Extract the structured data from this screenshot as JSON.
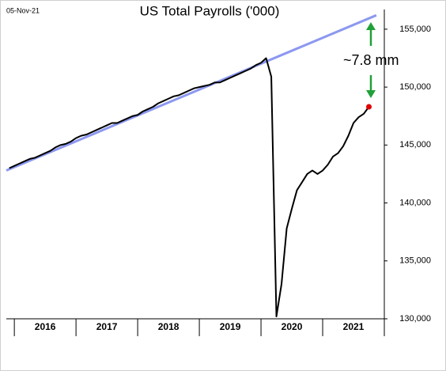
{
  "chart_data": {
    "type": "line",
    "title": "US Total Payrolls ('000)",
    "date_label": "05-Nov-21",
    "annotation": "~7.8 mm",
    "annotation_color": "#21a038",
    "xlim": [
      2015.87,
      2022.0
    ],
    "xticks": [
      {
        "value": 2016.5,
        "label": "2016"
      },
      {
        "value": 2017.5,
        "label": "2017"
      },
      {
        "value": 2018.5,
        "label": "2018"
      },
      {
        "value": 2019.5,
        "label": "2019"
      },
      {
        "value": 2020.5,
        "label": "2020"
      },
      {
        "value": 2021.5,
        "label": "2021"
      }
    ],
    "xticks_minor": [
      2016,
      2017,
      2018,
      2019,
      2020,
      2021,
      2022
    ],
    "ylim": [
      130000,
      156700
    ],
    "yticks": [
      {
        "value": 130000,
        "label": "130,000"
      },
      {
        "value": 135000,
        "label": "135,000"
      },
      {
        "value": 140000,
        "label": "140,000"
      },
      {
        "value": 145000,
        "label": "145,000"
      },
      {
        "value": 150000,
        "label": "150,000"
      },
      {
        "value": 155000,
        "label": "155,000"
      }
    ],
    "last_point_color": "#e00000",
    "series": [
      {
        "color": "#8c98f0",
        "width": 3,
        "x": [
          2015.87,
          2021.87
        ],
        "values": [
          142800,
          156200
        ]
      },
      {
        "color": "#000000",
        "width": 2,
        "x": [
          2015.917,
          2016.0,
          2016.083,
          2016.167,
          2016.25,
          2016.333,
          2016.417,
          2016.5,
          2016.583,
          2016.667,
          2016.75,
          2016.833,
          2016.917,
          2017.0,
          2017.083,
          2017.167,
          2017.25,
          2017.333,
          2017.417,
          2017.5,
          2017.583,
          2017.667,
          2017.75,
          2017.833,
          2017.917,
          2018.0,
          2018.083,
          2018.167,
          2018.25,
          2018.333,
          2018.417,
          2018.5,
          2018.583,
          2018.667,
          2018.75,
          2018.833,
          2018.917,
          2019.0,
          2019.083,
          2019.167,
          2019.25,
          2019.333,
          2019.417,
          2019.5,
          2019.583,
          2019.667,
          2019.75,
          2019.833,
          2019.917,
          2020.0,
          2020.083,
          2020.167,
          2020.25,
          2020.333,
          2020.417,
          2020.5,
          2020.583,
          2020.667,
          2020.75,
          2020.833,
          2020.917,
          2021.0,
          2021.083,
          2021.167,
          2021.25,
          2021.333,
          2021.417,
          2021.5,
          2021.583,
          2021.667,
          2021.75
        ],
        "values": [
          143000,
          143200,
          143400,
          143600,
          143800,
          143900,
          144100,
          144300,
          144500,
          144800,
          145000,
          145100,
          145300,
          145600,
          145800,
          145900,
          146100,
          146300,
          146500,
          146700,
          146900,
          146900,
          147100,
          147300,
          147500,
          147600,
          147900,
          148100,
          148300,
          148600,
          148800,
          149000,
          149200,
          149300,
          149500,
          149700,
          149900,
          150000,
          150100,
          150200,
          150400,
          150400,
          150600,
          150800,
          151000,
          151200,
          151400,
          151600,
          151900,
          152100,
          152500,
          150900,
          130200,
          133000,
          137800,
          139500,
          141100,
          141800,
          142500,
          142800,
          142500,
          142800,
          143300,
          144000,
          144300,
          144900,
          145800,
          146900,
          147400,
          147700,
          148300
        ]
      }
    ]
  }
}
